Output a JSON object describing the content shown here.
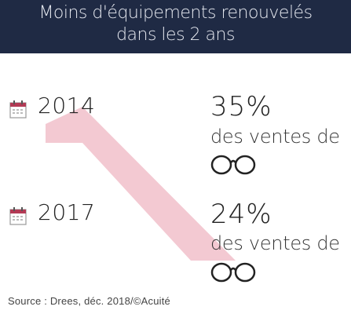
{
  "title": {
    "line1": "Moins d'équipements renouvelés",
    "line2": "dans les 2 ans"
  },
  "rows": [
    {
      "year": "2014",
      "percent": "35%",
      "description": "des ventes de"
    },
    {
      "year": "2017",
      "percent": "24%",
      "description": "des ventes de"
    }
  ],
  "source": "Source : Drees, déc. 2018/©Acuité",
  "colors": {
    "header_bg": "#1f2a44",
    "header_text": "#e6e9f0",
    "arrow_pink": "#f3c9d2"
  },
  "icons": [
    "calendar-icon",
    "eyeglasses-icon"
  ]
}
